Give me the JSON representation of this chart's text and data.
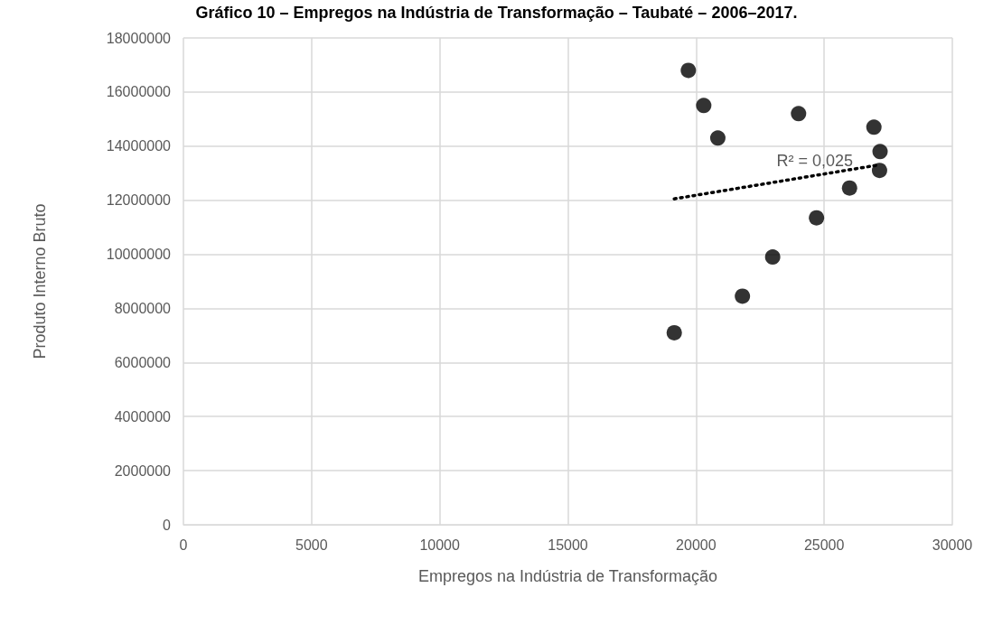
{
  "chart_data": {
    "type": "scatter",
    "title": "Gráfico 10 – Empregos na Indústria de Transformação – Taubaté – 2006–2017.",
    "xlabel": "Empregos na Indústria de Transformação",
    "ylabel": "Produto Interno Bruto",
    "series": [
      {
        "color": "#000000",
        "marker": "circle",
        "x": [
          19700,
          20300,
          24000,
          20850,
          26940,
          27180,
          27160,
          25990,
          24700,
          22990,
          21810,
          19150
        ],
        "values": [
          16800000,
          15500000,
          15200000,
          14300000,
          14700000,
          13800000,
          13100000,
          12450000,
          11350000,
          9900000,
          8450000,
          7100000
        ]
      },
      {
        "type": "line",
        "color": "#000000",
        "line_style": "dotted",
        "marker": "none",
        "x": [
          19150,
          27100
        ],
        "values": [
          12050000,
          13300000
        ]
      }
    ],
    "annotations": [
      "R² = 0,025"
    ],
    "xlim": [
      0,
      30000
    ],
    "xticks": [
      0,
      5000,
      10000,
      15000,
      20000,
      25000,
      30000
    ],
    "ylim": [
      0,
      18000000
    ],
    "yticks": [
      0,
      2000000,
      4000000,
      6000000,
      8000000,
      10000000,
      12000000,
      14000000,
      16000000,
      18000000
    ],
    "grid": true
  }
}
